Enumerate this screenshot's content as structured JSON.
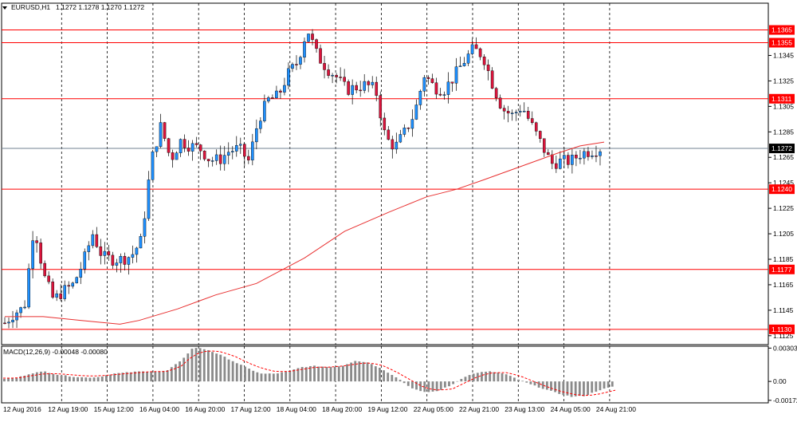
{
  "header": {
    "menu_icon": "triangle-down-icon",
    "symbol_label": "EURUSD,H1",
    "ohlc_label": "1.1272 1.1278 1.1270 1.1272"
  },
  "macd": {
    "label": "MACD(12,26,9) -0.00048 -0.00080"
  },
  "colors": {
    "background": "#ffffff",
    "frame": "#000000",
    "bull": "#1e90ff",
    "bear": "#dc143c",
    "level_line": "#ff0000",
    "ma_line": "#e83030",
    "current_price_line": "#708090",
    "price_tag_bg": "#ff0000",
    "current_tag_bg": "#000000",
    "grid": "#000000",
    "macd_hist": "#8a8a8a",
    "macd_signal": "#ff0000"
  },
  "chart_data": [
    {
      "type": "candlestick",
      "title": "EURUSD,H1",
      "ylim": [
        1.1118,
        1.1386
      ],
      "x": [
        "12 Aug 2016",
        "12 Aug 19:00",
        "15 Aug 12:00",
        "16 Aug 04:00",
        "16 Aug 20:00",
        "17 Aug 12:00",
        "18 Aug 04:00",
        "18 Aug 20:00",
        "19 Aug 12:00",
        "22 Aug 05:00",
        "22 Aug 21:00",
        "23 Aug 13:00",
        "24 Aug 05:00",
        "24 Aug 21:00"
      ],
      "y_ticks": [
        "1.1345",
        "1.1325",
        "1.1305",
        "1.1285",
        "1.1265",
        "1.1245",
        "1.1225",
        "1.1205",
        "1.1185",
        "1.1165",
        "1.1145",
        "1.1125"
      ],
      "y_tick_values": [
        1.1345,
        1.1325,
        1.1305,
        1.1285,
        1.1265,
        1.1245,
        1.1225,
        1.1205,
        1.1185,
        1.1165,
        1.1145,
        1.1125
      ],
      "levels": [
        "1.1365",
        "1.1355",
        "1.1311",
        "1.1240",
        "1.1177",
        "1.1130"
      ],
      "level_values": [
        1.1365,
        1.1355,
        1.1311,
        1.124,
        1.1177,
        1.113
      ],
      "current_price": "1.1272",
      "current_price_value": 1.1272,
      "close_anchors": [
        1.1135,
        1.1143,
        1.1147,
        1.1213,
        1.1172,
        1.1153,
        1.116,
        1.1165,
        1.1182,
        1.1205,
        1.1187,
        1.1185,
        1.1185,
        1.1188,
        1.12,
        1.1262,
        1.129,
        1.1263,
        1.1278,
        1.1274,
        1.1272,
        1.1263,
        1.1263,
        1.127,
        1.1272,
        1.1262,
        1.1295,
        1.131,
        1.1313,
        1.133,
        1.134,
        1.1366,
        1.1345,
        1.1335,
        1.1328,
        1.1318,
        1.132,
        1.1322,
        1.1318,
        1.128,
        1.1273,
        1.1285,
        1.13,
        1.133,
        1.132,
        1.1318,
        1.1328,
        1.134,
        1.135,
        1.1345,
        1.1322,
        1.1303,
        1.1298,
        1.1305,
        1.129,
        1.1275,
        1.126,
        1.1262,
        1.1262,
        1.1268,
        1.127,
        1.1272
      ],
      "ma_anchors": [
        1.114,
        1.114,
        1.1137,
        1.1134,
        1.1137,
        1.1146,
        1.1157,
        1.1166,
        1.1186,
        1.1207,
        1.1222,
        1.1234,
        1.124,
        1.1247,
        1.1258,
        1.1268,
        1.1274,
        1.1277
      ],
      "ma_x_fractions": [
        0.0,
        0.064,
        0.128,
        0.192,
        0.224,
        0.288,
        0.352,
        0.42,
        0.5,
        0.567,
        0.641,
        0.704,
        0.754,
        0.797,
        0.862,
        0.921,
        0.96,
        1.0
      ],
      "bars_visible": 150
    },
    {
      "type": "bar",
      "title": "MACD(12,26,9)",
      "ylim": [
        -0.00195,
        0.0032
      ],
      "y_ticks": [
        "0.00303",
        "0.00",
        "-0.00172"
      ],
      "y_tick_values": [
        0.00303,
        0.0,
        -0.00172
      ],
      "hist_anchors": [
        0.00025,
        0.00035,
        0.00075,
        0.0009,
        0.0006,
        0.00045,
        0.00035,
        0.0004,
        0.0007,
        0.0008,
        0.0009,
        0.00088,
        0.00095,
        0.0018,
        0.0031,
        0.0029,
        0.0024,
        0.0018,
        0.0012,
        0.0007,
        0.0007,
        0.0009,
        0.0013,
        0.0014,
        0.0013,
        0.0014,
        0.0019,
        0.0017,
        0.0011,
        0.0004,
        -0.0005,
        -0.001,
        -0.0009,
        -0.0004,
        0.0004,
        0.0008,
        0.0009,
        0.0007,
        0.0002,
        -0.0003,
        -0.0007,
        -0.0011,
        -0.0014,
        -0.0013,
        -0.0008,
        -0.0005
      ],
      "signal_anchors": [
        0.0003,
        0.0003,
        0.0005,
        0.0007,
        0.0007,
        0.0006,
        0.0005,
        0.0005,
        0.0006,
        0.0007,
        0.0008,
        0.0009,
        0.0009,
        0.0013,
        0.0024,
        0.0028,
        0.0027,
        0.0023,
        0.0017,
        0.0012,
        0.0009,
        0.0009,
        0.0011,
        0.0013,
        0.0013,
        0.0014,
        0.0016,
        0.0017,
        0.0014,
        0.0008,
        0.0001,
        -0.0006,
        -0.0008,
        -0.0007,
        -0.0001,
        0.0005,
        0.0008,
        0.0008,
        0.0005,
        0.0,
        -0.0005,
        -0.0009,
        -0.0012,
        -0.0013,
        -0.0011,
        -0.0008
      ],
      "bars_visible": 150
    }
  ]
}
